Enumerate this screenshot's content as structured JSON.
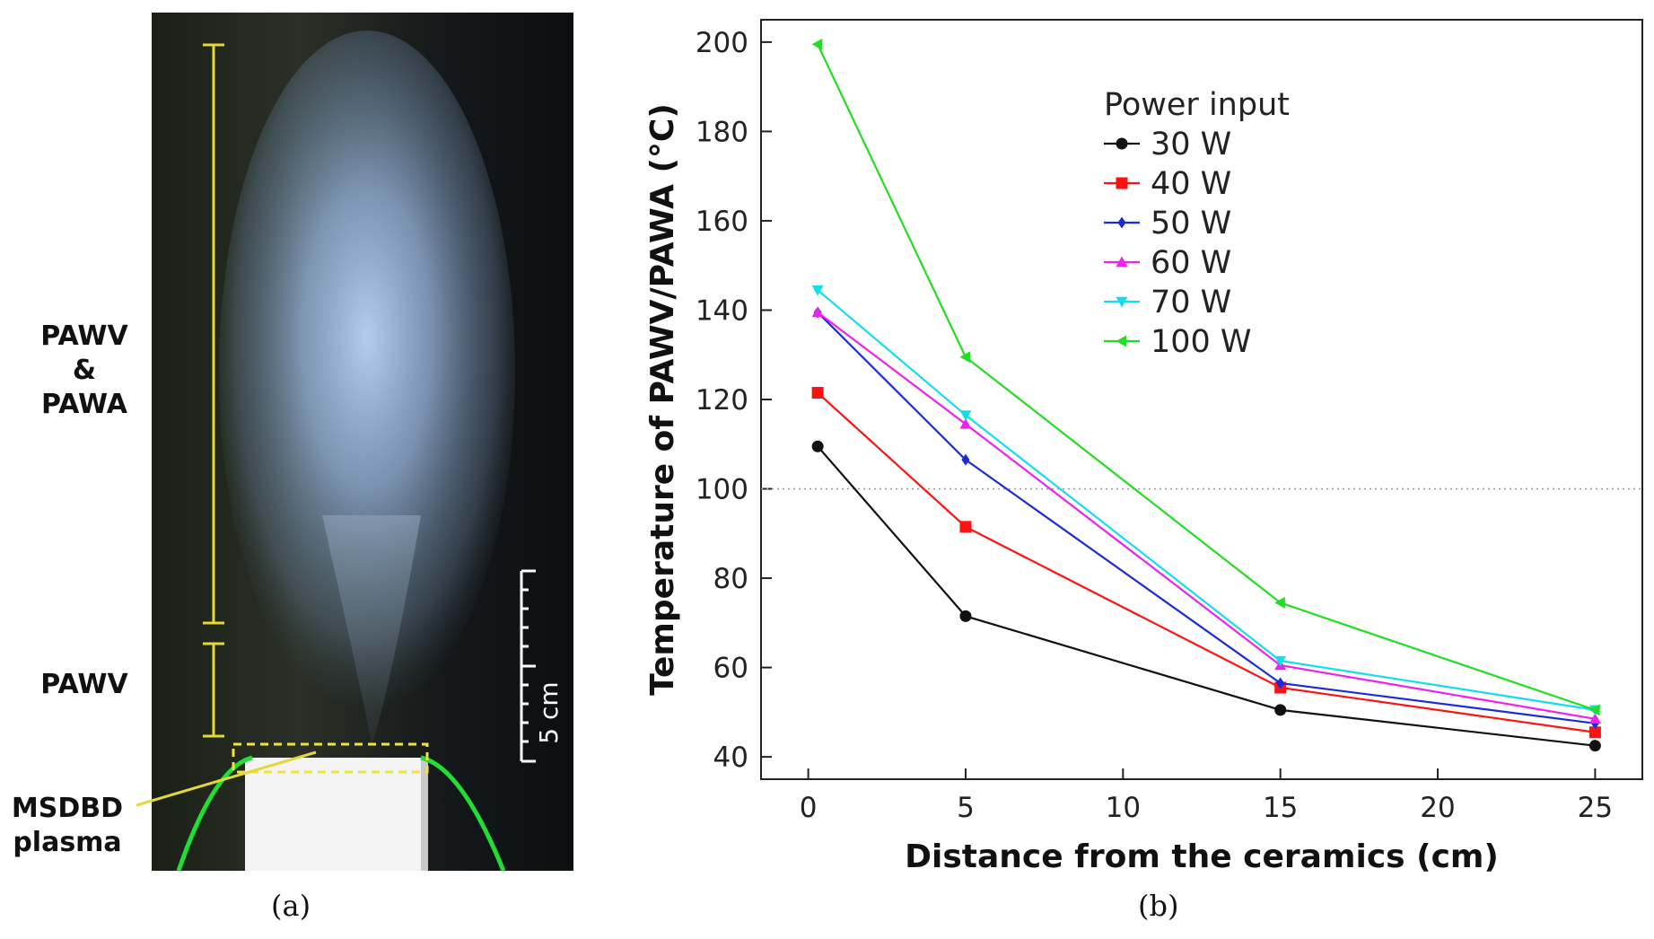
{
  "panel_a": {
    "caption": "(a)",
    "labels": {
      "pawv_pawa_line1": "PAWV",
      "pawv_pawa_line2": "&",
      "pawv_pawa_line3": "PAWA",
      "pawv": "PAWV",
      "msdbd_line1": "MSDBD",
      "msdbd_line2": "plasma"
    },
    "scale_bar_label": "5 cm",
    "colors": {
      "bracket": "#e5d73a",
      "electrode": "#22dd33"
    }
  },
  "panel_b": {
    "caption": "(b)"
  },
  "chart_data": {
    "type": "line",
    "title": "",
    "xlabel": "Distance from the ceramics (cm)",
    "ylabel": "Temperature of PAWV/PAWA (°C)",
    "xlim": [
      -1.5,
      26.5
    ],
    "ylim": [
      35,
      205
    ],
    "xticks": [
      0,
      5,
      10,
      15,
      20,
      25
    ],
    "yticks": [
      40,
      60,
      80,
      100,
      120,
      140,
      160,
      180,
      200
    ],
    "reference_line": {
      "y": 100,
      "style": "dotted"
    },
    "grid": false,
    "legend": {
      "title": "Power input",
      "placement": "top-right"
    },
    "x": [
      0.3,
      5,
      15,
      25
    ],
    "series": [
      {
        "name": "30 W",
        "color": "#111111",
        "marker": "circle",
        "values": [
          109.5,
          71.5,
          50.5,
          42.5
        ]
      },
      {
        "name": "40 W",
        "color": "#ff1111",
        "marker": "square",
        "values": [
          121.5,
          91.5,
          55.5,
          45.5
        ]
      },
      {
        "name": "50 W",
        "color": "#1a2bd9",
        "marker": "diamond",
        "values": [
          139.5,
          106.5,
          56.5,
          47.5
        ]
      },
      {
        "name": "60 W",
        "color": "#ee22ee",
        "marker": "triangle-up",
        "values": [
          139.5,
          114.5,
          60.5,
          48.5
        ]
      },
      {
        "name": "70 W",
        "color": "#11ddee",
        "marker": "triangle-down",
        "values": [
          144.5,
          116.5,
          61.5,
          50.5
        ]
      },
      {
        "name": "100 W",
        "color": "#22dd22",
        "marker": "triangle-left",
        "values": [
          199.5,
          129.5,
          74.5,
          50.5
        ]
      }
    ]
  }
}
